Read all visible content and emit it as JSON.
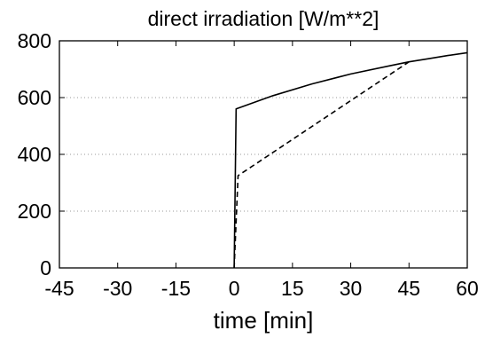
{
  "chart_data": {
    "type": "line",
    "title": "direct irradiation [W/m**2]",
    "xlabel": "time [min]",
    "ylabel": "",
    "xlim": [
      -45,
      60
    ],
    "ylim": [
      0,
      800
    ],
    "xticks": [
      "-45",
      "-30",
      "-15",
      "0",
      "15",
      "30",
      "45",
      "60"
    ],
    "yticks": [
      "0",
      "200",
      "400",
      "600",
      "800"
    ],
    "xtick_values": [
      -45,
      -30,
      -15,
      0,
      15,
      30,
      45,
      60
    ],
    "ytick_values": [
      0,
      200,
      400,
      600,
      800
    ],
    "grid": "horizontal-dotted",
    "series": [
      {
        "style": "solid",
        "color": "#000000",
        "x": [
          0,
          0.5,
          10,
          20,
          30,
          40,
          45,
          50,
          55,
          60
        ],
        "y": [
          0,
          560,
          607,
          648,
          683,
          712,
          726,
          737,
          748,
          758
        ]
      },
      {
        "style": "dashed",
        "color": "#000000",
        "x": [
          0,
          1,
          45
        ],
        "y": [
          0,
          325,
          726
        ]
      }
    ]
  }
}
